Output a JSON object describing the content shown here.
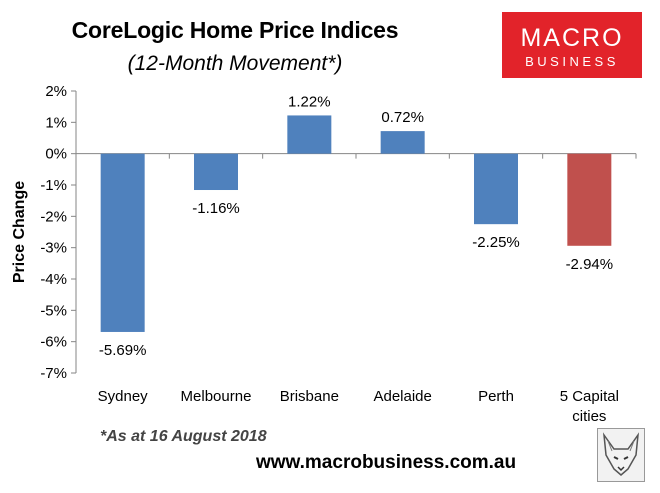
{
  "header": {
    "title": "CoreLogic Home Price Indices",
    "subtitle": "(12-Month Movement*)"
  },
  "logo": {
    "line1": "MACRO",
    "line2": "BUSINESS",
    "color": "#e2232a"
  },
  "footer": {
    "footnote": "*As at 16 August 2018",
    "website": "www.macrobusiness.com.au",
    "mascot_icon": "fox-sketch-icon"
  },
  "chart_data": {
    "type": "bar",
    "categories": [
      "Sydney",
      "Melbourne",
      "Brisbane",
      "Adelaide",
      "Perth",
      "5 Capital cities"
    ],
    "values": [
      -5.69,
      -1.16,
      1.22,
      0.72,
      -2.25,
      -2.94
    ],
    "data_labels": [
      "-5.69%",
      "-1.16%",
      "1.22%",
      "0.72%",
      "-2.25%",
      "-2.94%"
    ],
    "bar_colors": [
      "#4f81bd",
      "#4f81bd",
      "#4f81bd",
      "#4f81bd",
      "#4f81bd",
      "#c0504d"
    ],
    "ylabel": "Price Change",
    "ylim": [
      -7,
      2
    ],
    "yticks": [
      2,
      1,
      0,
      -1,
      -2,
      -3,
      -4,
      -5,
      -6,
      -7
    ],
    "ytick_labels": [
      "2%",
      "1%",
      "0%",
      "-1%",
      "-2%",
      "-3%",
      "-4%",
      "-5%",
      "-6%",
      "-7%"
    ],
    "grid": false,
    "legend": "none"
  }
}
